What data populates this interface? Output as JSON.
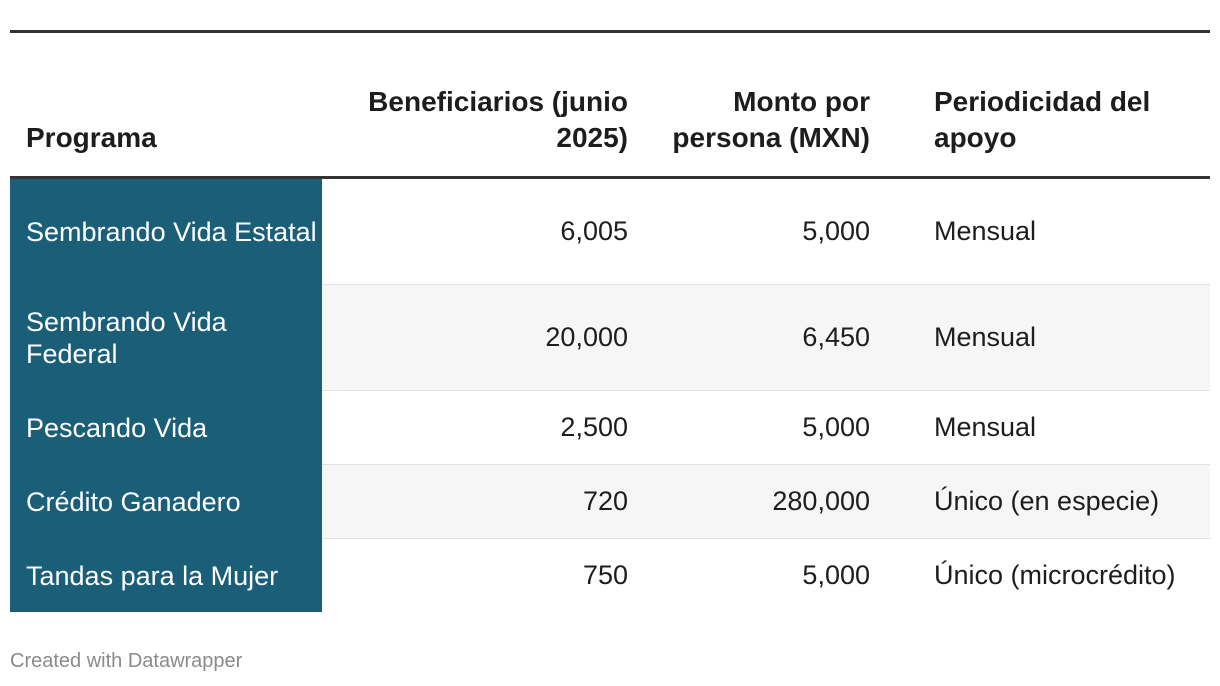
{
  "table": {
    "headers": {
      "programa": "Programa",
      "beneficiarios": "Beneficiarios (junio 2025)",
      "monto": "Monto por persona (MXN)",
      "periodicidad": "Periodicidad del apoyo"
    },
    "rows": [
      {
        "programa": "Sembrando Vida Estatal",
        "beneficiarios": "6,005",
        "monto": "5,000",
        "periodicidad": "Mensual"
      },
      {
        "programa": "Sembrando Vida Federal",
        "beneficiarios": "20,000",
        "monto": "6,450",
        "periodicidad": "Mensual"
      },
      {
        "programa": "Pescando Vida",
        "beneficiarios": "2,500",
        "monto": "5,000",
        "periodicidad": "Mensual"
      },
      {
        "programa": "Crédito Ganadero",
        "beneficiarios": "720",
        "monto": "280,000",
        "periodicidad": "Único (en especie)"
      },
      {
        "programa": "Tandas para la Mujer",
        "beneficiarios": "750",
        "monto": "5,000",
        "periodicidad": "Único (microcrédito)"
      }
    ]
  },
  "footer": {
    "credit": "Created with Datawrapper"
  },
  "colors": {
    "program_column": "#1a5e78",
    "alt_row": "#f6f6f6",
    "rule": "#333333"
  }
}
